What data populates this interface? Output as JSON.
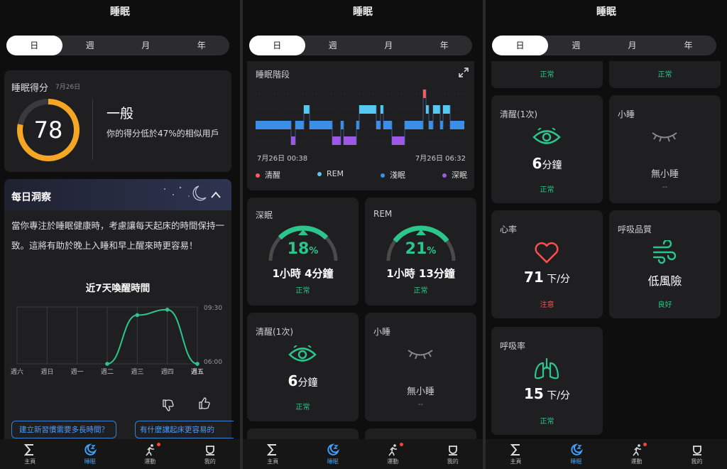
{
  "header": {
    "title": "睡眠"
  },
  "tabs": [
    "日",
    "週",
    "月",
    "年"
  ],
  "nav": [
    {
      "label": "主頁",
      "icon": "sigma-icon"
    },
    {
      "label": "睡眠",
      "icon": "moon-z-icon"
    },
    {
      "label": "運動",
      "icon": "running-icon"
    },
    {
      "label": "我的",
      "icon": "profile-icon"
    }
  ],
  "score_card": {
    "title": "睡眠得分",
    "date": "7月26日",
    "score": "78",
    "score_fraction": 0.78,
    "rating": "一般",
    "desc": "你的得分低於47%的相似用戶"
  },
  "insight": {
    "title": "每日洞察",
    "text": "當你專注於睡眠健康時，考慮讓每天起床的時間保持一致。這將有助於晚上入睡和早上醒來時更容易！",
    "chart_title": "近7天喚醒時間"
  },
  "chart_data": [
    {
      "type": "line",
      "title": "近7天喚醒時間",
      "categories": [
        "週六",
        "週日",
        "週一",
        "週二",
        "週三",
        "週四",
        "週五"
      ],
      "yticks": [
        "09:30",
        "06:00"
      ],
      "ylim": [
        "06:00",
        "09:30"
      ],
      "series": [
        {
          "values": [
            null,
            null,
            null,
            "06:00",
            "09:00",
            "09:20",
            "06:00"
          ],
          "color": "#2cc58b"
        }
      ]
    },
    {
      "type": "bar",
      "title": "睡眠階段",
      "x_start": "7月26日 00:38",
      "x_end": "7月26日 06:32",
      "legend": [
        {
          "name": "清醒",
          "color": "#ff5a5a"
        },
        {
          "name": "REM",
          "color": "#55c8f0"
        },
        {
          "name": "淺眠",
          "color": "#3b8fe6"
        },
        {
          "name": "深眠",
          "color": "#9b59e6"
        }
      ]
    }
  ],
  "question_chips": [
    "建立新習慣需要多長時間？",
    "有什麼讓起床更容易的"
  ],
  "stages_card": {
    "title": "睡眠階段"
  },
  "deep_card": {
    "title": "深眠",
    "percent": "18",
    "percent_unit": "%",
    "fraction": 0.18,
    "duration": "1小時 4分鐘",
    "status": "正常"
  },
  "rem_card": {
    "title": "REM",
    "percent": "21",
    "percent_unit": "%",
    "fraction": 0.21,
    "duration": "1小時 13分鐘",
    "status": "正常"
  },
  "awake_card": {
    "title": "清醒(1次)",
    "value": "6",
    "unit": "分鐘",
    "status": "正常"
  },
  "nap_card": {
    "title": "小睡",
    "value": "無小睡",
    "status": "--"
  },
  "top_status": {
    "left": "正常",
    "right": "正常"
  },
  "heart_card": {
    "title": "心率",
    "value": "71",
    "unit": " 下/分",
    "status": "注意"
  },
  "breath_quality_card": {
    "title": "呼吸品質",
    "value": "低風險",
    "status": "良好"
  },
  "resp_card": {
    "title": "呼吸率",
    "value": "15",
    "unit": " 下/分",
    "status": "正常"
  }
}
